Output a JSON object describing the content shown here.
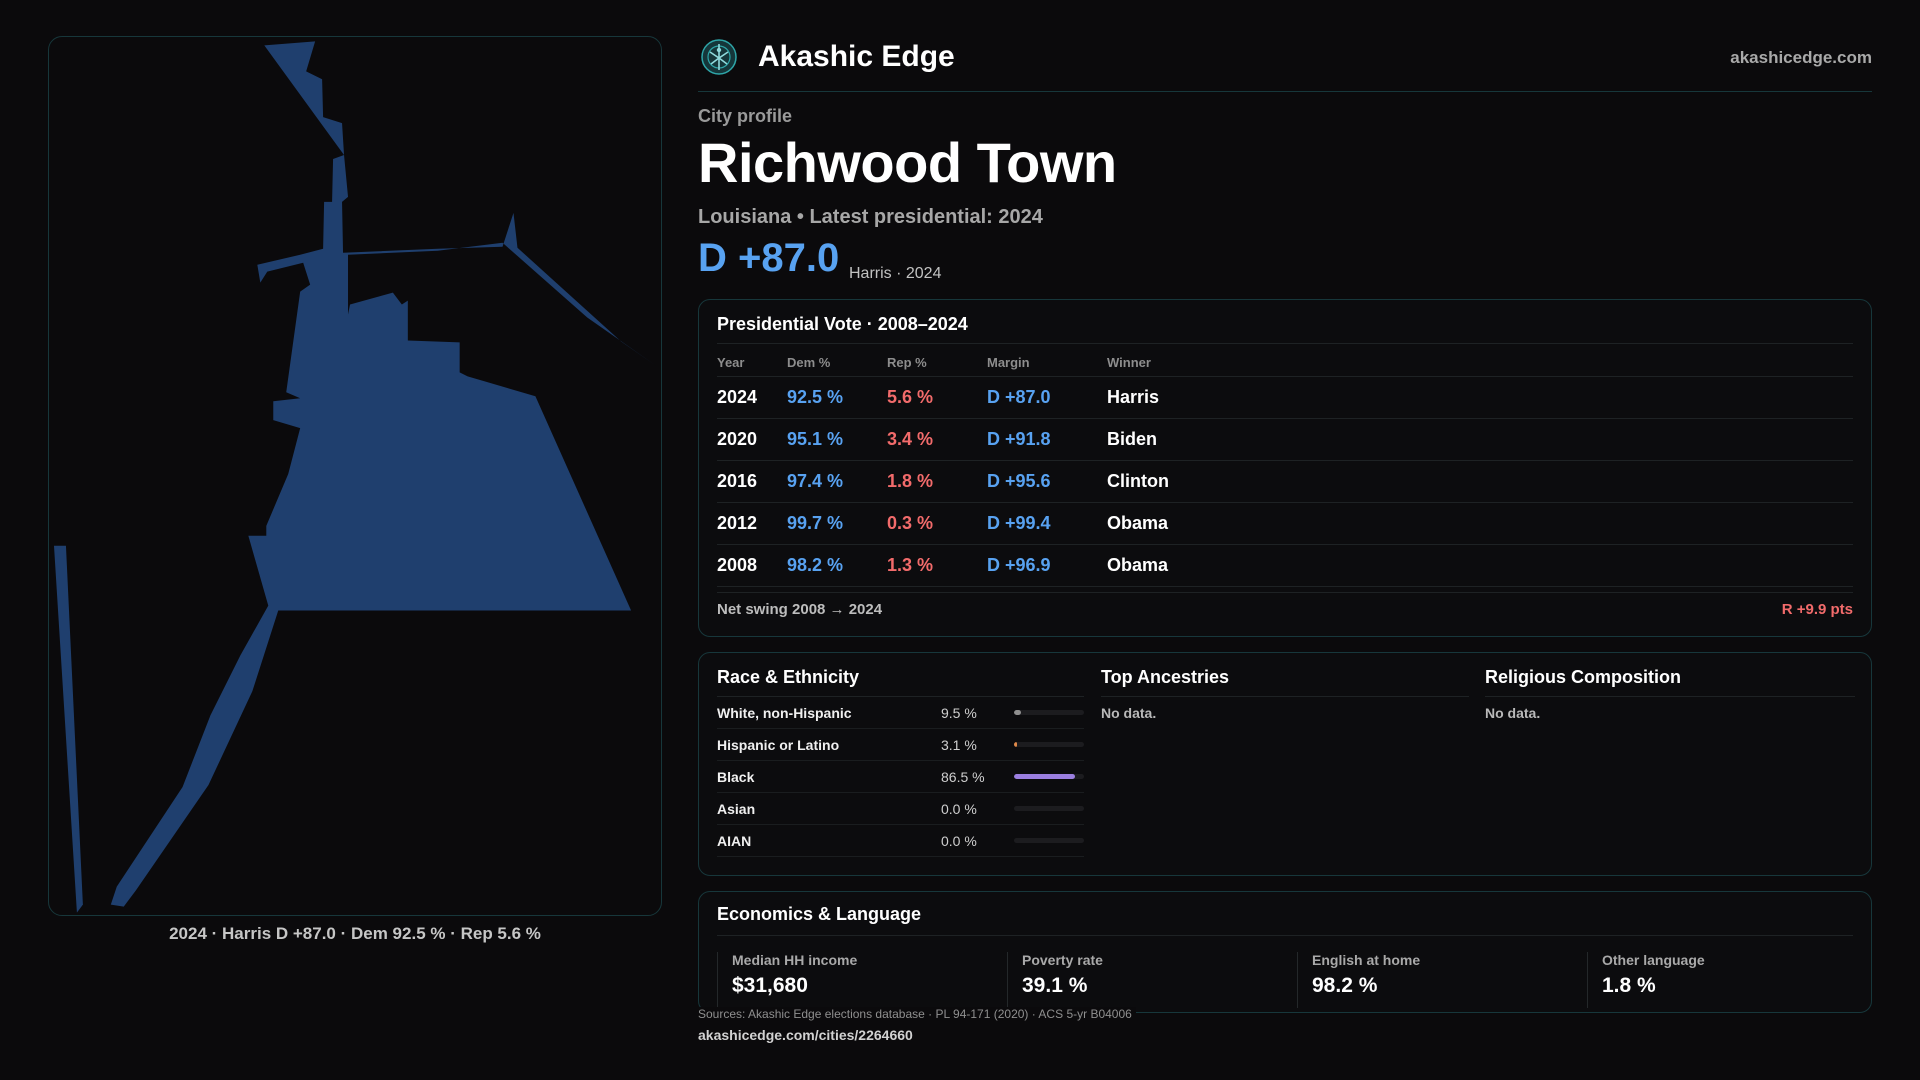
{
  "colors": {
    "dem": "#58a2f1",
    "rep": "#f26b6b",
    "accent": "#17373b",
    "map_fill": "#1f3f6e"
  },
  "map": {
    "caption": "2024 · Harris D +87.0 · Dem 92.5 % · Rep 5.6 %"
  },
  "header": {
    "brand": "Akashic Edge",
    "site": "akashicedge.com",
    "logo_icon": "tree-of-life-icon"
  },
  "profile": {
    "kicker": "City profile",
    "title": "Richwood Town",
    "subtitle": "Louisiana • Latest presidential: 2024",
    "margin": "D +87.0",
    "margin_note": "Harris · 2024"
  },
  "vote": {
    "title": "Presidential Vote · 2008–2024",
    "headers": [
      "Year",
      "Dem %",
      "Rep %",
      "Margin",
      "Winner"
    ],
    "rows": [
      {
        "year": "2024",
        "dem": "92.5 %",
        "rep": "5.6 %",
        "margin": "D +87.0",
        "winner": "Harris"
      },
      {
        "year": "2020",
        "dem": "95.1 %",
        "rep": "3.4 %",
        "margin": "D +91.8",
        "winner": "Biden"
      },
      {
        "year": "2016",
        "dem": "97.4 %",
        "rep": "1.8 %",
        "margin": "D +95.6",
        "winner": "Clinton"
      },
      {
        "year": "2012",
        "dem": "99.7 %",
        "rep": "0.3 %",
        "margin": "D +99.4",
        "winner": "Obama"
      },
      {
        "year": "2008",
        "dem": "98.2 %",
        "rep": "1.3 %",
        "margin": "D +96.9",
        "winner": "Obama"
      }
    ],
    "swing_label": "Net swing 2008 → 2024",
    "swing_value": "R +9.9 pts"
  },
  "race": {
    "title": "Race & Ethnicity",
    "rows": [
      {
        "name": "White, non-Hispanic",
        "pct": "9.5 %",
        "share": 0.095,
        "color": "#8f8f8f"
      },
      {
        "name": "Hispanic or Latino",
        "pct": "3.1 %",
        "share": 0.031,
        "color": "#e08a4a"
      },
      {
        "name": "Black",
        "pct": "86.5 %",
        "share": 0.865,
        "color": "#9b7fe0"
      },
      {
        "name": "Asian",
        "pct": "0.0 %",
        "share": 0.0,
        "color": "#58a2f1"
      },
      {
        "name": "AIAN",
        "pct": "0.0 %",
        "share": 0.0,
        "color": "#58a2f1"
      }
    ]
  },
  "ancestries": {
    "title": "Top Ancestries",
    "empty": "No data."
  },
  "religion": {
    "title": "Religious Composition",
    "empty": "No data."
  },
  "economics": {
    "title": "Economics & Language",
    "stats": [
      {
        "label": "Median HH income",
        "value": "$31,680"
      },
      {
        "label": "Poverty rate",
        "value": "39.1 %"
      },
      {
        "label": "English at home",
        "value": "98.2 %"
      },
      {
        "label": "Other language",
        "value": "1.8 %"
      }
    ]
  },
  "footer": {
    "sources": "Sources: Akashic Edge elections database · PL 94-171 (2020) · ACS 5-yr B04006",
    "permalink": "akashicedge.com/cities/2264660"
  }
}
